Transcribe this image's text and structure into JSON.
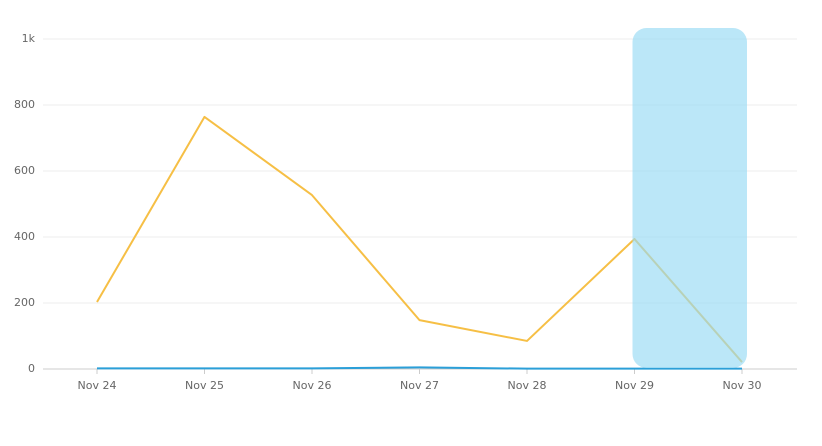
{
  "chart_data": {
    "type": "line",
    "categories": [
      "Nov 24",
      "Nov 25",
      "Nov 26",
      "Nov 27",
      "Nov 28",
      "Nov 29",
      "Nov 30"
    ],
    "series": [
      {
        "color": "#f6bf45",
        "values": [
          203,
          764,
          527,
          148,
          85,
          394,
          21
        ]
      },
      {
        "color": "#2b9fd8",
        "values": [
          2,
          2,
          2,
          5,
          1,
          1,
          1
        ]
      }
    ],
    "ylim": [
      0,
      1000
    ],
    "yticks": [
      0,
      200,
      400,
      600,
      800,
      {
        "value": 1000,
        "label": "1k"
      }
    ],
    "grid": true
  }
}
